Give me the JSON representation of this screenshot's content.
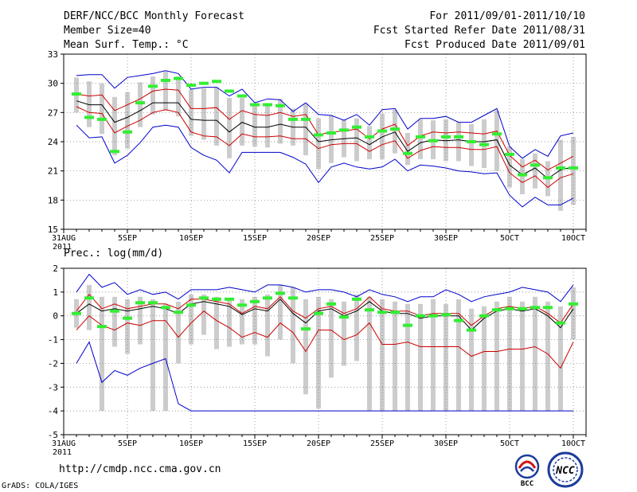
{
  "header": {
    "title": "DERF/NCC/BCC Monthly Forecast",
    "member_size": "Member Size=40",
    "variable": "Mean Surf. Temp.: °C",
    "period": "For 2011/09/01-2011/10/10",
    "started": "Fcst Started Refer Date 2011/08/31",
    "produced": "Fcst Produced Date 2011/09/01"
  },
  "footer": {
    "url": "http://cmdp.ncc.cma.gov.cn",
    "credit": "GrADS: COLA/IGES"
  },
  "logos": {
    "bcc_label": "BCC",
    "ncc_label": "NCC"
  },
  "colors": {
    "ensemble_mean": "#000000",
    "inner_spread": "#cc0000",
    "outer_envelope": "#0000cc",
    "member_box": "#cccccc",
    "marker": "#33ee33"
  },
  "chart_data": [
    {
      "type": "line",
      "title": "Mean Surf. Temp.: °C",
      "x_tick_labels": [
        "31AUG\n2011",
        "5SEP",
        "10SEP",
        "15SEP",
        "20SEP",
        "25SEP",
        "30SEP",
        "5OCT",
        "10OCT"
      ],
      "x_tick_days": [
        0,
        5,
        10,
        15,
        20,
        25,
        30,
        35,
        40
      ],
      "xlim": [
        0,
        41
      ],
      "ylim": [
        15,
        33
      ],
      "y_ticks": [
        15,
        18,
        21,
        24,
        27,
        30,
        33
      ],
      "grid": true,
      "days": [
        1,
        2,
        3,
        4,
        5,
        6,
        7,
        8,
        9,
        10,
        11,
        12,
        13,
        14,
        15,
        16,
        17,
        18,
        19,
        20,
        21,
        22,
        23,
        24,
        25,
        26,
        27,
        28,
        29,
        30,
        31,
        32,
        33,
        34,
        35,
        36,
        37,
        38,
        39,
        40
      ],
      "series": [
        {
          "name": "ensemble mean",
          "color": "#000000",
          "values": [
            28.2,
            27.8,
            27.8,
            26.0,
            26.5,
            27.2,
            28.0,
            28.0,
            28.0,
            26.3,
            26.2,
            26.2,
            25.0,
            26.0,
            25.5,
            25.5,
            25.8,
            25.5,
            25.5,
            24.0,
            24.2,
            24.3,
            24.4,
            23.7,
            24.5,
            25.0,
            23.0,
            23.9,
            24.2,
            24.1,
            24.2,
            24.0,
            24.0,
            24.2,
            21.6,
            20.6,
            21.3,
            20.2,
            21.1,
            21.4
          ]
        },
        {
          "name": "spread upper",
          "color": "#cc0000",
          "values": [
            28.9,
            28.7,
            28.8,
            27.2,
            27.8,
            28.4,
            29.2,
            29.4,
            29.3,
            27.4,
            27.4,
            27.5,
            26.3,
            27.2,
            26.8,
            26.7,
            27.0,
            26.6,
            26.8,
            24.7,
            25.0,
            25.1,
            25.3,
            24.3,
            25.3,
            25.8,
            23.6,
            24.6,
            25.0,
            24.9,
            25.0,
            24.9,
            24.8,
            25.1,
            22.6,
            21.4,
            22.1,
            21.1,
            21.8,
            22.5
          ]
        },
        {
          "name": "spread lower",
          "color": "#cc0000",
          "values": [
            27.6,
            27.0,
            26.9,
            24.9,
            25.6,
            26.2,
            27.0,
            27.3,
            27.0,
            25.0,
            24.6,
            24.5,
            23.6,
            24.8,
            24.5,
            24.5,
            24.6,
            24.3,
            24.3,
            23.3,
            23.7,
            23.8,
            23.8,
            23.0,
            23.7,
            24.1,
            22.3,
            23.1,
            23.5,
            23.4,
            23.4,
            23.2,
            23.2,
            23.5,
            20.8,
            19.8,
            20.5,
            19.3,
            20.3,
            20.7
          ]
        },
        {
          "name": "envelope max",
          "color": "#0000cc",
          "values": [
            30.8,
            30.9,
            30.9,
            29.5,
            30.6,
            30.8,
            31.0,
            31.3,
            31.0,
            29.4,
            29.6,
            29.6,
            28.7,
            29.4,
            28.0,
            28.4,
            28.3,
            27.1,
            28.0,
            26.8,
            26.7,
            26.2,
            26.8,
            25.7,
            27.3,
            27.4,
            25.3,
            26.4,
            26.4,
            26.6,
            26.0,
            26.0,
            26.7,
            27.4,
            23.5,
            22.3,
            23.2,
            22.5,
            24.6,
            24.9
          ]
        },
        {
          "name": "envelope min",
          "color": "#0000cc",
          "values": [
            25.7,
            24.4,
            24.5,
            21.8,
            22.6,
            23.9,
            25.5,
            25.7,
            25.5,
            23.4,
            22.6,
            22.1,
            20.8,
            22.9,
            22.9,
            22.9,
            22.9,
            22.4,
            21.7,
            19.8,
            21.4,
            21.8,
            21.4,
            21.2,
            21.4,
            22.2,
            21.0,
            21.6,
            21.5,
            21.3,
            21.0,
            20.9,
            20.7,
            20.8,
            18.5,
            17.3,
            18.3,
            17.5,
            17.5,
            18.2
          ]
        }
      ],
      "member_range_bars": [
        [
          27.0,
          30.6
        ],
        [
          25.5,
          30.2
        ],
        [
          24.8,
          30.0
        ],
        [
          22.6,
          28.6
        ],
        [
          23.3,
          29.1
        ],
        [
          25.5,
          30.1
        ],
        [
          26.8,
          30.7
        ],
        [
          27.2,
          31.2
        ],
        [
          26.6,
          30.7
        ],
        [
          24.6,
          29.4
        ],
        [
          24.2,
          29.5
        ],
        [
          23.6,
          29.6
        ],
        [
          22.3,
          28.5
        ],
        [
          23.6,
          28.5
        ],
        [
          23.5,
          27.7
        ],
        [
          23.4,
          27.8
        ],
        [
          23.8,
          28.4
        ],
        [
          23.6,
          27.4
        ],
        [
          22.6,
          27.9
        ],
        [
          21.2,
          26.4
        ],
        [
          21.8,
          26.7
        ],
        [
          22.4,
          26.3
        ],
        [
          22.0,
          26.4
        ],
        [
          22.2,
          25.6
        ],
        [
          22.2,
          26.9
        ],
        [
          22.8,
          27.3
        ],
        [
          21.6,
          24.9
        ],
        [
          22.2,
          26.3
        ],
        [
          22.2,
          26.2
        ],
        [
          22.0,
          26.3
        ],
        [
          22.0,
          26.0
        ],
        [
          21.5,
          25.8
        ],
        [
          21.3,
          26.3
        ],
        [
          21.0,
          27.2
        ],
        [
          19.3,
          23.5
        ],
        [
          18.6,
          22.2
        ],
        [
          19.2,
          22.8
        ],
        [
          18.4,
          22.0
        ],
        [
          16.9,
          24.2
        ],
        [
          17.5,
          24.5
        ]
      ],
      "marker_values": [
        28.9,
        26.5,
        26.3,
        23.0,
        25.0,
        28.0,
        29.7,
        30.3,
        30.5,
        29.8,
        30.0,
        30.2,
        29.2,
        28.7,
        27.8,
        27.8,
        27.7,
        26.3,
        26.3,
        24.7,
        24.9,
        25.2,
        25.5,
        24.5,
        25.1,
        25.3,
        22.8,
        24.5,
        24.1,
        24.5,
        24.5,
        24.0,
        23.7,
        24.8,
        22.7,
        20.6,
        21.6,
        20.3,
        21.3,
        21.3
      ]
    },
    {
      "type": "line",
      "title": "Prec.: log(mm/d)",
      "x_tick_labels": [
        "31AUG\n2011",
        "5SEP",
        "10SEP",
        "15SEP",
        "20SEP",
        "25SEP",
        "30SEP",
        "5OCT",
        "10OCT"
      ],
      "x_tick_days": [
        0,
        5,
        10,
        15,
        20,
        25,
        30,
        35,
        40
      ],
      "xlim": [
        0,
        41
      ],
      "ylim": [
        -5,
        2
      ],
      "y_ticks": [
        -5,
        -4,
        -3,
        -2,
        -1,
        0,
        1,
        2
      ],
      "grid": true,
      "days": [
        1,
        2,
        3,
        4,
        5,
        6,
        7,
        8,
        9,
        10,
        11,
        12,
        13,
        14,
        15,
        16,
        17,
        18,
        19,
        20,
        21,
        22,
        23,
        24,
        25,
        26,
        27,
        28,
        29,
        30,
        31,
        32,
        33,
        34,
        35,
        36,
        37,
        38,
        39,
        40
      ],
      "series": [
        {
          "name": "ensemble mean",
          "color": "#000000",
          "values": [
            0.1,
            0.5,
            0.2,
            0.3,
            0.2,
            0.3,
            0.4,
            0.3,
            0.1,
            0.5,
            0.6,
            0.5,
            0.4,
            0.05,
            0.3,
            0.2,
            0.7,
            0.1,
            -0.3,
            0.2,
            0.3,
            0.0,
            0.2,
            0.6,
            0.2,
            0.1,
            0.1,
            -0.1,
            0.0,
            0.0,
            0.0,
            -0.6,
            -0.1,
            0.2,
            0.3,
            0.2,
            0.3,
            0.0,
            -0.5,
            0.3
          ]
        },
        {
          "name": "spread upper",
          "color": "#cc0000",
          "values": [
            0.2,
            0.9,
            0.3,
            0.5,
            0.3,
            0.4,
            0.5,
            0.5,
            0.3,
            0.7,
            0.7,
            0.6,
            0.5,
            0.1,
            0.4,
            0.3,
            0.8,
            0.2,
            -0.1,
            0.3,
            0.4,
            0.1,
            0.3,
            0.8,
            0.3,
            0.2,
            0.2,
            0.0,
            0.1,
            0.1,
            0.1,
            -0.4,
            0.0,
            0.3,
            0.4,
            0.3,
            0.4,
            0.1,
            -0.3,
            0.5
          ]
        },
        {
          "name": "spread lower",
          "color": "#cc0000",
          "values": [
            -0.6,
            0.0,
            -0.4,
            -0.6,
            -0.3,
            -0.4,
            -0.2,
            -0.2,
            -0.9,
            -0.3,
            0.2,
            -0.2,
            -0.5,
            -0.9,
            -0.7,
            -0.9,
            -0.3,
            -0.7,
            -1.5,
            -0.6,
            -0.6,
            -1.0,
            -0.8,
            -0.3,
            -1.2,
            -1.2,
            -1.1,
            -1.3,
            -1.3,
            -1.3,
            -1.3,
            -1.7,
            -1.5,
            -1.5,
            -1.4,
            -1.4,
            -1.3,
            -1.6,
            -2.2,
            -1.1
          ]
        },
        {
          "name": "envelope max",
          "color": "#0000cc",
          "values": [
            1.0,
            1.75,
            1.2,
            1.4,
            0.9,
            1.1,
            0.9,
            1.0,
            0.7,
            1.1,
            1.1,
            1.1,
            1.2,
            1.1,
            1.0,
            1.3,
            1.3,
            1.2,
            1.0,
            1.1,
            1.1,
            1.0,
            0.8,
            1.1,
            0.9,
            0.8,
            0.6,
            0.8,
            0.8,
            1.1,
            0.9,
            0.6,
            0.8,
            0.9,
            1.0,
            1.2,
            1.1,
            1.0,
            0.6,
            1.3
          ]
        },
        {
          "name": "envelope min",
          "color": "#0000cc",
          "values": [
            -2.0,
            -1.1,
            -2.8,
            -2.3,
            -2.5,
            -2.2,
            -2.0,
            -1.8,
            -3.7,
            -4.0,
            -4.0,
            -4.0,
            -4.0,
            -4.0,
            -4.0,
            -4.0,
            -4.0,
            -4.0,
            -4.0,
            -4.0,
            -4.0,
            -4.0,
            -4.0,
            -4.0,
            -4.0,
            -4.0,
            -4.0,
            -4.0,
            -4.0,
            -4.0,
            -4.0,
            -4.0,
            -4.0,
            -4.0,
            -4.0,
            -4.0,
            -4.0,
            -4.0,
            -4.0,
            -4.0
          ]
        }
      ],
      "member_range_bars": [
        [
          -0.5,
          0.7
        ],
        [
          -0.6,
          1.3
        ],
        [
          -4.0,
          0.8
        ],
        [
          -1.3,
          0.8
        ],
        [
          -1.6,
          0.7
        ],
        [
          -1.2,
          0.8
        ],
        [
          -4.0,
          0.7
        ],
        [
          -4.0,
          0.5
        ],
        [
          -2.0,
          0.6
        ],
        [
          -1.2,
          0.9
        ],
        [
          -0.8,
          0.9
        ],
        [
          -1.4,
          0.8
        ],
        [
          -1.3,
          0.7
        ],
        [
          -1.2,
          0.7
        ],
        [
          -1.2,
          0.8
        ],
        [
          -1.7,
          0.9
        ],
        [
          -1.0,
          1.3
        ],
        [
          -2.0,
          1.2
        ],
        [
          -3.3,
          0.7
        ],
        [
          -3.9,
          0.8
        ],
        [
          -2.6,
          0.7
        ],
        [
          -2.1,
          0.6
        ],
        [
          -1.9,
          0.9
        ],
        [
          -4.0,
          0.8
        ],
        [
          -4.0,
          0.7
        ],
        [
          -4.0,
          0.6
        ],
        [
          -4.0,
          0.5
        ],
        [
          -4.0,
          0.5
        ],
        [
          -4.0,
          0.7
        ],
        [
          -4.0,
          0.5
        ],
        [
          -4.0,
          0.7
        ],
        [
          -4.0,
          0.3
        ],
        [
          -4.0,
          0.4
        ],
        [
          -4.0,
          0.6
        ],
        [
          -4.0,
          0.8
        ],
        [
          -4.0,
          0.6
        ],
        [
          -4.0,
          0.8
        ],
        [
          -4.0,
          0.6
        ],
        [
          -4.0,
          0.4
        ],
        [
          -1.0,
          1.2
        ]
      ],
      "marker_values": [
        0.1,
        0.75,
        -0.45,
        0.2,
        -0.1,
        0.55,
        0.55,
        0.35,
        0.15,
        0.45,
        0.75,
        0.7,
        0.7,
        0.45,
        0.6,
        0.75,
        0.95,
        0.75,
        -0.55,
        0.1,
        0.5,
        -0.05,
        0.7,
        0.25,
        0.15,
        0.15,
        -0.4,
        0.0,
        0.0,
        0.05,
        -0.2,
        -0.6,
        0.0,
        0.25,
        0.3,
        0.3,
        0.35,
        0.35,
        -0.3,
        0.5
      ]
    }
  ]
}
